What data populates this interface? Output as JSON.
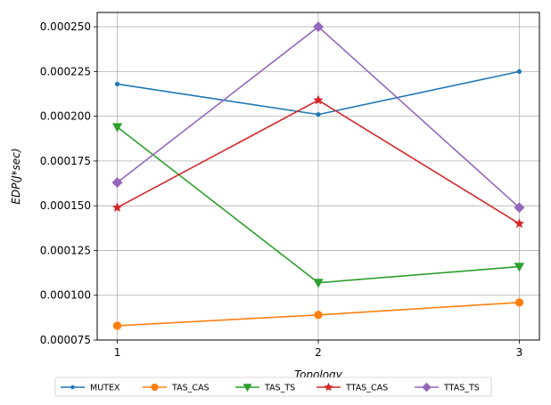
{
  "chart_data": {
    "type": "line",
    "xlabel": "Topology",
    "ylabel": "EDP(J*sec)",
    "x": [
      1,
      2,
      3
    ],
    "x_ticks": [
      "1",
      "2",
      "3"
    ],
    "xlim": [
      0.9,
      3.1
    ],
    "ylim": [
      7.5e-05,
      0.000258
    ],
    "y_ticks": [
      "0.000075",
      "0.000100",
      "0.000125",
      "0.000150",
      "0.000175",
      "0.000200",
      "0.000225",
      "0.000250"
    ],
    "grid": true,
    "legend_position": "bottom",
    "series": [
      {
        "name": "MUTEX",
        "color": "#1f77b4",
        "marker": "point",
        "values": [
          0.000218,
          0.000201,
          0.000225
        ]
      },
      {
        "name": "TAS_CAS",
        "color": "#ff7f0e",
        "marker": "circle",
        "values": [
          8.3e-05,
          8.9e-05,
          9.6e-05
        ]
      },
      {
        "name": "TAS_TS",
        "color": "#2ca02c",
        "marker": "triangle-down",
        "values": [
          0.000194,
          0.000107,
          0.000116
        ]
      },
      {
        "name": "TTAS_CAS",
        "color": "#d62728",
        "marker": "star",
        "values": [
          0.000149,
          0.000209,
          0.00014
        ]
      },
      {
        "name": "TTAS_TS",
        "color": "#9467bd",
        "marker": "diamond",
        "values": [
          0.000163,
          0.00025,
          0.000149
        ]
      }
    ]
  }
}
